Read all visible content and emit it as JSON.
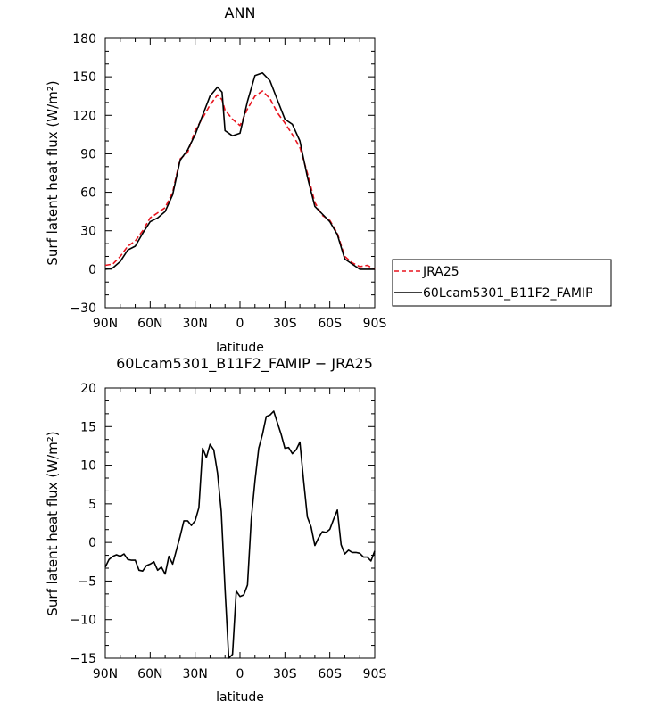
{
  "chart_data": [
    {
      "type": "line",
      "title": "ANN",
      "xlabel": "latitude",
      "ylabel": "Surf latent heat flux (W/m²)",
      "xlim": [
        90,
        -90
      ],
      "ylim": [
        -30,
        180
      ],
      "xticks": [
        90,
        60,
        30,
        0,
        -30,
        -60,
        -90
      ],
      "xtick_labels": [
        "90N",
        "60N",
        "30N",
        "0",
        "30S",
        "60S",
        "90S"
      ],
      "yticks": [
        -30,
        0,
        30,
        60,
        90,
        120,
        150,
        180
      ],
      "ytick_labels": [
        "−30",
        "0",
        "30",
        "60",
        "90",
        "120",
        "150",
        "180"
      ],
      "legend": {
        "placement": "right",
        "entries": [
          "JRA25",
          "60Lcam5301_B11F2_FAMIP"
        ]
      },
      "series": [
        {
          "name": "JRA25",
          "color": "#e8141e",
          "style": "dashed",
          "x": [
            90,
            85,
            80,
            75,
            70,
            65,
            60,
            55,
            50,
            45,
            40,
            35,
            30,
            25,
            20,
            15,
            12,
            10,
            5,
            0,
            -5,
            -10,
            -15,
            -20,
            -25,
            -30,
            -35,
            -40,
            -45,
            -50,
            -55,
            -60,
            -65,
            -70,
            -75,
            -80,
            -85,
            -90
          ],
          "y": [
            3,
            4,
            10,
            18,
            22,
            30,
            40,
            44,
            48,
            60,
            86,
            91,
            108,
            118,
            128,
            136,
            132,
            124,
            117,
            112,
            125,
            135,
            139,
            133,
            122,
            114,
            105,
            95,
            75,
            52,
            42,
            38,
            28,
            10,
            5,
            2,
            3,
            0
          ]
        },
        {
          "name": "60Lcam5301_B11F2_FAMIP",
          "color": "#000000",
          "style": "solid",
          "x": [
            90,
            85,
            80,
            75,
            70,
            65,
            60,
            55,
            50,
            45,
            40,
            35,
            30,
            25,
            20,
            15,
            12,
            10,
            5,
            0,
            -5,
            -10,
            -15,
            -20,
            -25,
            -30,
            -35,
            -40,
            -45,
            -50,
            -55,
            -60,
            -65,
            -70,
            -75,
            -80,
            -85,
            -90
          ],
          "y": [
            0,
            1,
            6,
            15,
            18,
            28,
            37,
            40,
            45,
            58,
            85,
            93,
            105,
            120,
            135,
            142,
            138,
            108,
            104,
            106,
            131,
            151,
            153,
            147,
            132,
            117,
            113,
            100,
            72,
            49,
            43,
            37,
            27,
            8,
            4,
            0,
            0,
            0
          ]
        }
      ]
    },
    {
      "type": "line",
      "title": "60Lcam5301_B11F2_FAMIP − JRA25",
      "xlabel": "latitude",
      "ylabel": "Surf latent heat flux (W/m²)",
      "xlim": [
        90,
        -90
      ],
      "ylim": [
        -15,
        20
      ],
      "xticks": [
        90,
        60,
        30,
        0,
        -30,
        -60,
        -90
      ],
      "xtick_labels": [
        "90N",
        "60N",
        "30N",
        "0",
        "30S",
        "60S",
        "90S"
      ],
      "yticks": [
        -15,
        -10,
        -5,
        0,
        5,
        10,
        15,
        20
      ],
      "ytick_labels": [
        "−15",
        "−10",
        "−5",
        "0",
        "5",
        "10",
        "15",
        "20"
      ],
      "series": [
        {
          "color": "#000000",
          "style": "solid",
          "x": [
            90,
            87.5,
            85,
            82.5,
            80,
            77.5,
            75,
            72.5,
            70,
            67.5,
            65,
            62.5,
            60,
            57.5,
            55,
            52.5,
            50,
            47.5,
            45,
            42.5,
            40,
            37.5,
            35,
            32.5,
            30,
            27.5,
            25,
            22.5,
            20,
            17.5,
            15,
            12.5,
            10,
            7.5,
            5,
            2.5,
            0,
            -2.5,
            -5,
            -7.5,
            -10,
            -12.5,
            -15,
            -17.5,
            -20,
            -22.5,
            -25,
            -27.5,
            -30,
            -32.5,
            -35,
            -37.5,
            -40,
            -42.5,
            -45,
            -47.5,
            -50,
            -52.5,
            -55,
            -57.5,
            -60,
            -62.5,
            -65,
            -67.5,
            -70,
            -72.5,
            -75,
            -77.5,
            -80,
            -82.5,
            -85,
            -87.5,
            -90
          ],
          "y": [
            -3.2,
            -2.2,
            -1.8,
            -1.6,
            -1.8,
            -1.5,
            -2.2,
            -2.3,
            -2.3,
            -3.6,
            -3.7,
            -3.0,
            -2.8,
            -2.5,
            -3.6,
            -3.2,
            -4.1,
            -1.8,
            -2.8,
            -1.0,
            0.8,
            2.8,
            2.8,
            2.2,
            2.8,
            4.5,
            12.2,
            11.0,
            12.7,
            12.0,
            9.0,
            4.0,
            -6.0,
            -15.0,
            -14.5,
            -6.3,
            -7.0,
            -6.8,
            -5.5,
            3.0,
            8.0,
            12.2,
            14.0,
            16.3,
            16.5,
            17.0,
            15.5,
            14.0,
            12.2,
            12.3,
            11.5,
            12.0,
            13.0,
            8.0,
            3.3,
            2.0,
            -0.4,
            0.6,
            1.4,
            1.3,
            1.7,
            3.0,
            4.2,
            -0.3,
            -1.5,
            -1.0,
            -1.3,
            -1.3,
            -1.4,
            -1.9,
            -1.9,
            -2.4,
            -1.1
          ]
        }
      ]
    }
  ]
}
